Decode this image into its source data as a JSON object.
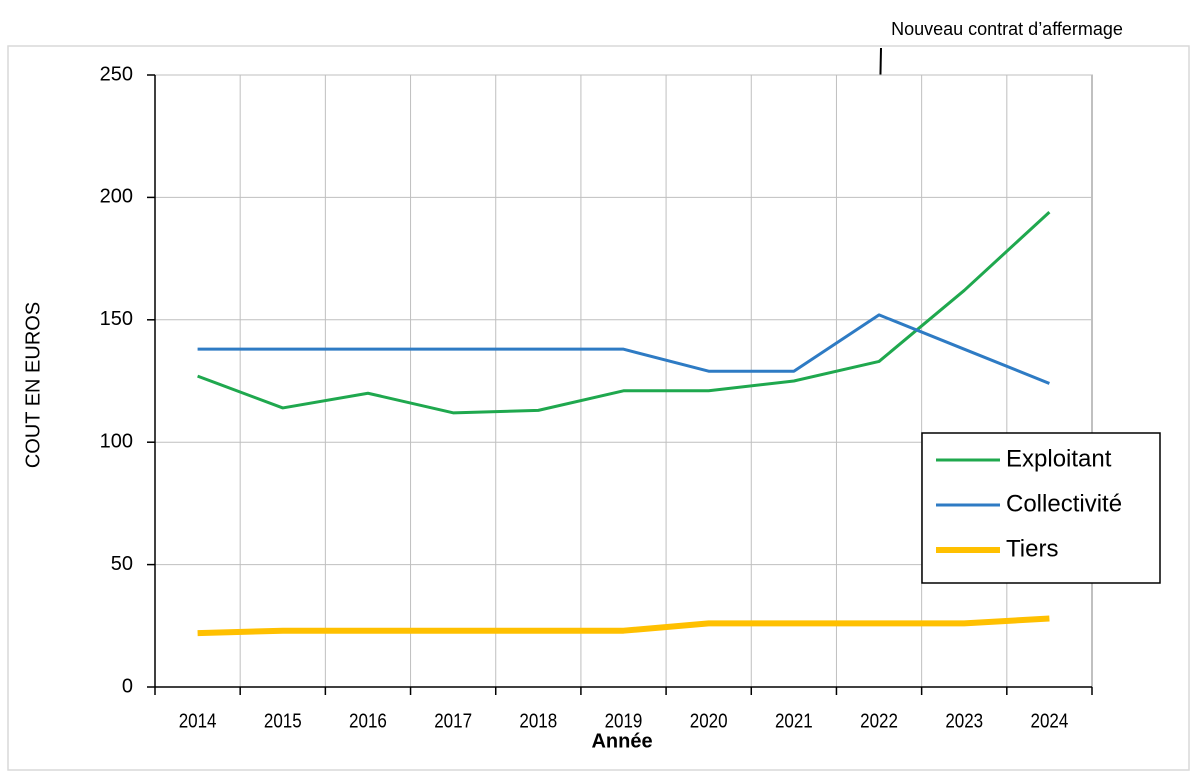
{
  "chart_data": {
    "type": "line",
    "annotation": "Nouveau contrat d’affermage",
    "ylabel": "COUT EN EUROS",
    "xlabel": "Année",
    "categories": [
      "2014",
      "2015",
      "2016",
      "2017",
      "2018",
      "2019",
      "2020",
      "2021",
      "2022",
      "2023",
      "2024"
    ],
    "series": [
      {
        "name": "Exploitant",
        "color": "#1fa84e",
        "width": 3,
        "values": [
          127,
          114,
          120,
          112,
          113,
          121,
          121,
          125,
          133,
          162,
          194
        ]
      },
      {
        "name": "Collectivité",
        "color": "#2e7bc4",
        "width": 3,
        "values": [
          138,
          138,
          138,
          138,
          138,
          138,
          129,
          129,
          152,
          138,
          124
        ]
      },
      {
        "name": "Tiers",
        "color": "#ffc000",
        "width": 6,
        "values": [
          22,
          23,
          23,
          23,
          23,
          23,
          26,
          26,
          26,
          26,
          28
        ]
      }
    ],
    "ylim": [
      0,
      250
    ],
    "yticks": [
      0,
      50,
      100,
      150,
      200,
      250
    ],
    "grid": true,
    "legend": "right"
  }
}
